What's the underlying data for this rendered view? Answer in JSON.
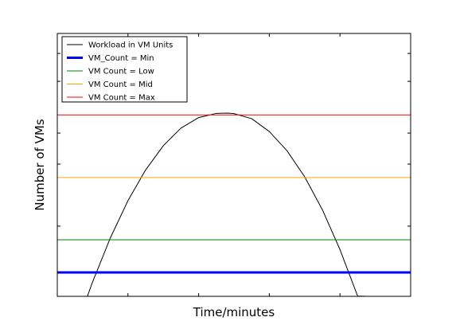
{
  "chart_data": {
    "type": "line",
    "xlabel": "Time/minutes",
    "ylabel": "Number of VMs",
    "xlim": [
      0,
      100
    ],
    "ylim": [
      0,
      100
    ],
    "x_ticks": [
      20,
      40,
      60,
      80
    ],
    "y_ticks": [
      26.7,
      50.3,
      62.1,
      81.8,
      92.4
    ],
    "tick_labels_visible": false,
    "grid": false,
    "legend": {
      "position": "top-left"
    },
    "series": [
      {
        "name": "Workload in VM Units",
        "kind": "curve",
        "color": "#000000",
        "linewidth": 1,
        "points": [
          [
            8.5,
            0
          ],
          [
            10,
            5.5
          ],
          [
            15,
            22.2
          ],
          [
            20,
            36.4
          ],
          [
            25,
            48.1
          ],
          [
            30,
            57.3
          ],
          [
            35,
            64.0
          ],
          [
            40,
            68.0
          ],
          [
            45,
            69.6
          ],
          [
            48.2,
            69.7
          ],
          [
            50,
            69.5
          ],
          [
            55,
            67.6
          ],
          [
            60,
            62.7
          ],
          [
            65,
            55.4
          ],
          [
            70,
            45.5
          ],
          [
            75,
            33.0
          ],
          [
            80,
            17.8
          ],
          [
            85,
            0.1
          ],
          [
            87.7,
            0
          ]
        ]
      },
      {
        "name": "VM_Count = Min",
        "kind": "hline",
        "y": 9.1,
        "color": "#0000ff",
        "linewidth": 3
      },
      {
        "name": "VM Count = Low",
        "kind": "hline",
        "y": 21.5,
        "color": "#008000",
        "linewidth": 1
      },
      {
        "name": "VM Count = Mid",
        "kind": "hline",
        "y": 45.2,
        "color": "#ffa500",
        "linewidth": 1
      },
      {
        "name": "VM Count = Max",
        "kind": "hline",
        "y": 69.0,
        "color": "#ff0000",
        "linewidth": 1
      }
    ]
  }
}
